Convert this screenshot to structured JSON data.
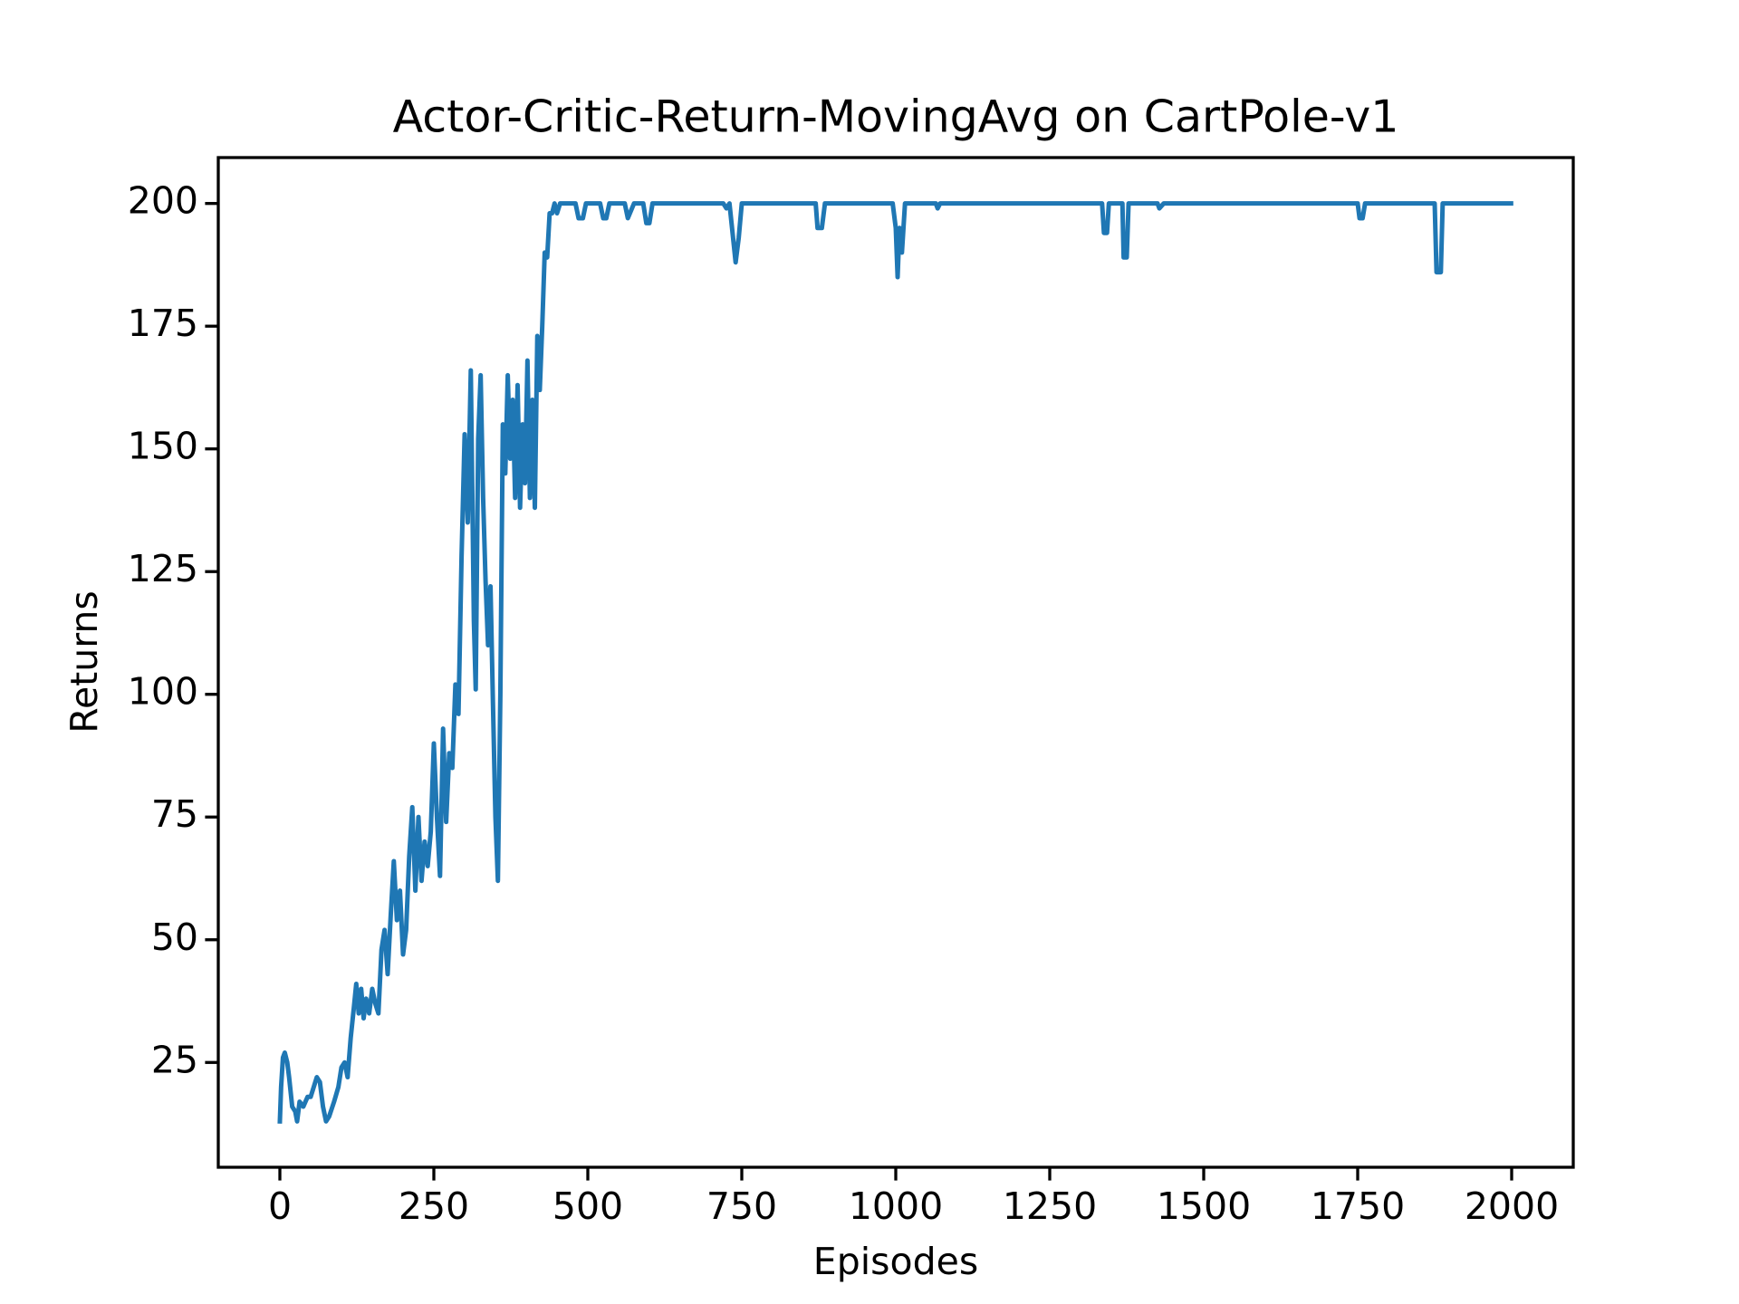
{
  "chart_data": {
    "type": "line",
    "title": "Actor-Critic-Return-MovingAvg on  CartPole-v1",
    "xlabel": "Episodes",
    "ylabel": "Returns",
    "x": [
      0,
      2,
      5,
      8,
      12,
      15,
      20,
      25,
      28,
      32,
      38,
      45,
      50,
      55,
      60,
      65,
      70,
      75,
      80,
      88,
      95,
      100,
      105,
      110,
      115,
      120,
      124,
      128,
      132,
      136,
      140,
      145,
      150,
      155,
      160,
      165,
      170,
      175,
      180,
      185,
      190,
      195,
      200,
      205,
      210,
      215,
      220,
      225,
      230,
      235,
      240,
      245,
      250,
      255,
      260,
      265,
      270,
      275,
      280,
      285,
      290,
      295,
      300,
      305,
      310,
      315,
      318,
      322,
      326,
      330,
      334,
      338,
      342,
      346,
      350,
      354,
      358,
      362,
      366,
      370,
      374,
      378,
      382,
      386,
      390,
      394,
      398,
      402,
      406,
      410,
      414,
      418,
      422,
      426,
      430,
      434,
      438,
      442,
      446,
      450,
      455,
      470,
      480,
      485,
      492,
      497,
      520,
      525,
      530,
      535,
      560,
      565,
      575,
      590,
      595,
      600,
      605,
      720,
      725,
      730,
      735,
      740,
      745,
      750,
      870,
      873,
      880,
      885,
      995,
      1000,
      1003,
      1006,
      1010,
      1015,
      1065,
      1068,
      1072,
      1335,
      1338,
      1343,
      1346,
      1368,
      1370,
      1375,
      1378,
      1425,
      1428,
      1435,
      1750,
      1753,
      1758,
      1762,
      1875,
      1878,
      1885,
      1888,
      1999
    ],
    "values": [
      13,
      20,
      26,
      27,
      25,
      22,
      16,
      15,
      13,
      17,
      16,
      18,
      18,
      20,
      22,
      21,
      16,
      13,
      14,
      17,
      20,
      24,
      25,
      22,
      30,
      36,
      41,
      35,
      40,
      34,
      38,
      35,
      40,
      37,
      35,
      48,
      52,
      43,
      55,
      66,
      54,
      60,
      47,
      52,
      67,
      77,
      60,
      75,
      62,
      70,
      65,
      72,
      90,
      75,
      63,
      93,
      74,
      88,
      85,
      102,
      96,
      128,
      153,
      135,
      166,
      115,
      101,
      152,
      165,
      140,
      123,
      110,
      122,
      98,
      75,
      62,
      100,
      155,
      145,
      165,
      148,
      160,
      140,
      163,
      138,
      155,
      143,
      168,
      140,
      160,
      138,
      173,
      162,
      175,
      190,
      189,
      198,
      198,
      200,
      198,
      200,
      200,
      200,
      197,
      197,
      200,
      200,
      197,
      197,
      200,
      200,
      197,
      200,
      200,
      196,
      196,
      200,
      200,
      199,
      200,
      194,
      188,
      193,
      200,
      200,
      195,
      195,
      200,
      200,
      195,
      185,
      195,
      190,
      200,
      200,
      199,
      200,
      200,
      194,
      194,
      200,
      200,
      189,
      189,
      200,
      200,
      199,
      200,
      200,
      197,
      197,
      200,
      200,
      186,
      186,
      200,
      200
    ],
    "color": "#1f77b4",
    "xlim": [
      -100,
      2100
    ],
    "xticks": [
      0,
      250,
      500,
      750,
      1000,
      1250,
      1500,
      1750,
      2000
    ],
    "ylim": [
      3.65,
      209.35
    ],
    "yticks": [
      25,
      50,
      75,
      100,
      125,
      150,
      175,
      200
    ]
  }
}
